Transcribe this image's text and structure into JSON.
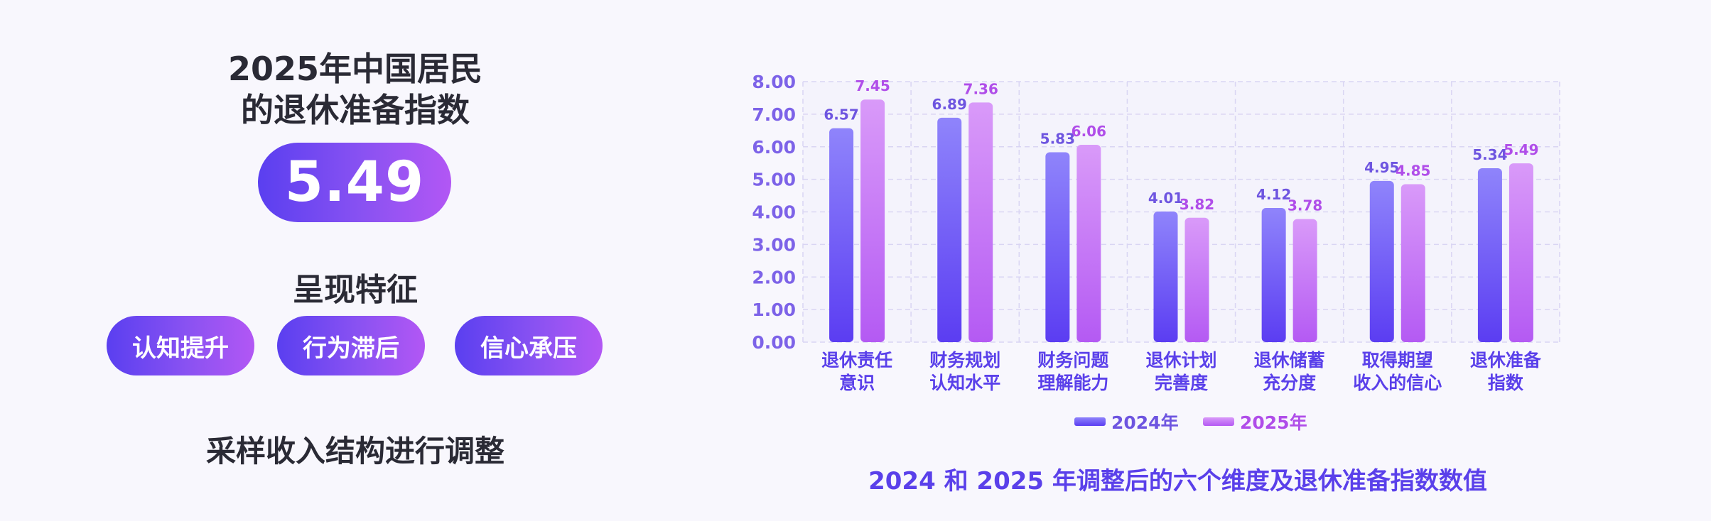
{
  "left": {
    "title_line1": "2025年中国居民",
    "title_line2": "的退休准备指数",
    "index_value": "5.49",
    "subtitle": "呈现特征",
    "tags": [
      "认知提升",
      "行为滞后",
      "信心承压"
    ],
    "footnote": "采样收入结构进行调整"
  },
  "caption": "2024 和 2025 年调整后的六个维度及退休准备指数数值",
  "colors": {
    "accent_start": "#5a3ff0",
    "accent_end": "#b257f4",
    "series_2024_top": "#8f84fb",
    "series_2024_bottom": "#5b3df2",
    "series_2025_top": "#d99af9",
    "series_2025_bottom": "#b45af3",
    "tick_label": "#7d63e8",
    "value_label_2024": "#6e55e0",
    "value_label_2025": "#b04ee9",
    "category_label": "#5a40ea"
  },
  "chart_data": {
    "type": "bar",
    "categories": [
      [
        "退休责任",
        "意识"
      ],
      [
        "财务规划",
        "认知水平"
      ],
      [
        "财务问题",
        "理解能力"
      ],
      [
        "退休计划",
        "完善度"
      ],
      [
        "退休储蓄",
        "充分度"
      ],
      [
        "取得期望",
        "收入的信心"
      ],
      [
        "退休准备",
        "指数"
      ]
    ],
    "series": [
      {
        "name": "2024年",
        "values": [
          6.57,
          6.89,
          5.83,
          4.01,
          4.12,
          4.95,
          5.34
        ]
      },
      {
        "name": "2025年",
        "values": [
          7.45,
          7.36,
          6.06,
          3.82,
          3.78,
          4.85,
          5.49
        ]
      }
    ],
    "ylim": [
      0,
      8
    ],
    "yticks": [
      "0.00",
      "1.00",
      "2.00",
      "3.00",
      "4.00",
      "5.00",
      "6.00",
      "7.00",
      "8.00"
    ],
    "grid": true,
    "legend": "bottom-center"
  }
}
